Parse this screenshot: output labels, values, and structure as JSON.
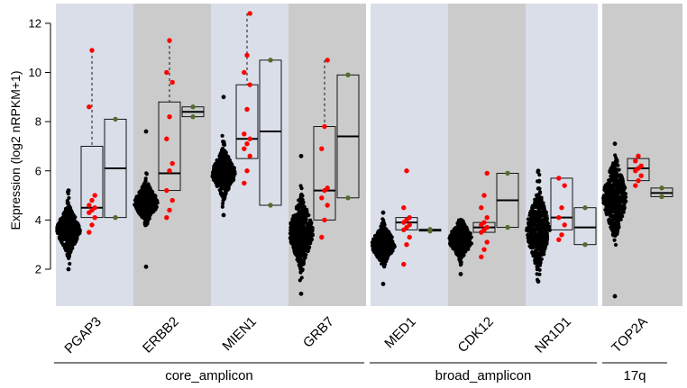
{
  "chart_data": {
    "type": "box",
    "ylabel": "Expression (log2 nRPKM+1)",
    "ylim": [
      0.5,
      12.8
    ],
    "yticks": [
      2,
      4,
      6,
      8,
      10,
      12
    ],
    "grid": false,
    "legend": "none",
    "colors": {
      "panel_light": "#d9dee9",
      "panel_dark": "#cbcbcb",
      "panel_white_gap": "#ffffff",
      "series_all": "#000000",
      "series_red": "#ff0000",
      "series_green": "#556b2f"
    },
    "groups": [
      {
        "label": "core_amplicon",
        "genes": [
          "PGAP3",
          "ERBB2",
          "MIEN1",
          "GRB7"
        ]
      },
      {
        "label": "broad_amplicon",
        "genes": [
          "MED1",
          "CDK12",
          "NR1D1"
        ]
      },
      {
        "label": "17q",
        "genes": [
          "TOP2A"
        ]
      }
    ],
    "genes": [
      {
        "label": "PGAP3",
        "boxes": [
          {
            "kind": "black",
            "min": 2.0,
            "q1": 3.3,
            "median": 3.6,
            "q3": 3.9,
            "max": 5.2
          },
          {
            "kind": "red",
            "min": 3.5,
            "q1": 4.1,
            "median": 4.5,
            "q3": 7.0,
            "max": 10.9,
            "dashed": true,
            "points": [
              3.5,
              3.8,
              4.1,
              4.3,
              4.4,
              4.5,
              4.6,
              4.8,
              5.0,
              8.6,
              10.9
            ]
          },
          {
            "kind": "green",
            "min": 4.1,
            "q1": 4.1,
            "median": 6.1,
            "q3": 8.1,
            "max": 8.1,
            "points": [
              4.1,
              8.1
            ]
          }
        ]
      },
      {
        "label": "ERBB2",
        "boxes": [
          {
            "kind": "black",
            "min": 2.1,
            "q1": 4.4,
            "median": 4.7,
            "q3": 4.9,
            "max": 7.6
          },
          {
            "kind": "red",
            "min": 4.1,
            "q1": 5.2,
            "median": 5.9,
            "q3": 8.8,
            "max": 11.3,
            "dashed": true,
            "points": [
              4.1,
              4.4,
              4.8,
              5.2,
              6.0,
              6.3,
              7.3,
              8.2,
              9.6,
              10.0,
              11.3
            ]
          },
          {
            "kind": "green",
            "min": 8.2,
            "q1": 8.2,
            "median": 8.4,
            "q3": 8.6,
            "max": 8.6,
            "points": [
              8.2,
              8.6
            ]
          }
        ]
      },
      {
        "label": "MIEN1",
        "boxes": [
          {
            "kind": "black",
            "min": 4.2,
            "q1": 5.6,
            "median": 5.9,
            "q3": 6.2,
            "max": 9.0
          },
          {
            "kind": "red",
            "min": 5.5,
            "q1": 6.5,
            "median": 7.3,
            "q3": 9.5,
            "max": 12.4,
            "dashed": true,
            "points": [
              5.5,
              6.0,
              6.6,
              6.9,
              7.1,
              7.3,
              7.5,
              8.5,
              9.5,
              10.0,
              10.7,
              12.4
            ]
          },
          {
            "kind": "green",
            "min": 4.6,
            "q1": 4.6,
            "median": 7.6,
            "q3": 10.5,
            "max": 10.5,
            "points": [
              4.6,
              10.5
            ]
          }
        ]
      },
      {
        "label": "GRB7",
        "boxes": [
          {
            "kind": "black",
            "min": 1.0,
            "q1": 3.1,
            "median": 3.5,
            "q3": 4.0,
            "max": 6.6
          },
          {
            "kind": "red",
            "min": 3.3,
            "q1": 4.0,
            "median": 5.2,
            "q3": 7.8,
            "max": 10.5,
            "dashed": true,
            "points": [
              3.3,
              4.0,
              4.6,
              4.9,
              5.2,
              5.3,
              6.9,
              7.8,
              10.5
            ]
          },
          {
            "kind": "green",
            "min": 4.9,
            "q1": 4.9,
            "median": 7.4,
            "q3": 9.9,
            "max": 9.9,
            "points": [
              4.9,
              9.9
            ]
          }
        ]
      },
      {
        "label": "MED1",
        "boxes": [
          {
            "kind": "black",
            "min": 1.4,
            "q1": 2.7,
            "median": 3.0,
            "q3": 3.2,
            "max": 4.3
          },
          {
            "kind": "red",
            "min": 2.2,
            "q1": 3.6,
            "median": 3.9,
            "q3": 4.1,
            "max": 6.0,
            "points": [
              2.2,
              3.0,
              3.3,
              3.6,
              3.7,
              3.8,
              3.9,
              4.0,
              4.1,
              4.5,
              6.0
            ]
          },
          {
            "kind": "green",
            "min": 3.55,
            "q1": 3.55,
            "median": 3.6,
            "q3": 3.62,
            "max": 3.62,
            "points": [
              3.55,
              3.62
            ]
          }
        ]
      },
      {
        "label": "CDK12",
        "boxes": [
          {
            "kind": "black",
            "min": 1.8,
            "q1": 2.9,
            "median": 3.2,
            "q3": 3.4,
            "max": 4.0
          },
          {
            "kind": "red",
            "min": 2.5,
            "q1": 3.5,
            "median": 3.7,
            "q3": 3.9,
            "max": 5.9,
            "points": [
              2.5,
              2.8,
              3.1,
              3.5,
              3.6,
              3.7,
              3.8,
              3.9,
              4.1,
              4.5,
              5.0,
              5.9
            ]
          },
          {
            "kind": "green",
            "min": 3.7,
            "q1": 3.7,
            "median": 4.8,
            "q3": 5.9,
            "max": 5.9,
            "points": [
              3.7,
              5.9
            ]
          }
        ]
      },
      {
        "label": "NR1D1",
        "boxes": [
          {
            "kind": "black",
            "min": 1.5,
            "q1": 3.2,
            "median": 3.6,
            "q3": 4.2,
            "max": 6.0
          },
          {
            "kind": "red",
            "min": 3.2,
            "q1": 3.6,
            "median": 4.1,
            "q3": 5.7,
            "max": 5.7,
            "points": [
              3.2,
              3.4,
              3.8,
              4.1,
              4.5,
              5.4,
              5.7
            ]
          },
          {
            "kind": "green",
            "min": 3.0,
            "q1": 3.0,
            "median": 3.7,
            "q3": 4.5,
            "max": 4.5,
            "points": [
              3.0,
              4.5
            ]
          }
        ]
      },
      {
        "label": "TOP2A",
        "boxes": [
          {
            "kind": "black",
            "min": 0.9,
            "q1": 4.4,
            "median": 4.9,
            "q3": 5.4,
            "max": 7.1
          },
          {
            "kind": "red",
            "min": 5.4,
            "q1": 5.6,
            "median": 6.1,
            "q3": 6.5,
            "max": 6.6,
            "points": [
              5.4,
              5.6,
              5.8,
              6.0,
              6.1,
              6.2,
              6.4,
              6.6
            ]
          },
          {
            "kind": "green",
            "min": 4.95,
            "q1": 4.95,
            "median": 5.1,
            "q3": 5.3,
            "max": 5.3,
            "points": [
              4.95,
              5.3
            ]
          }
        ]
      }
    ]
  }
}
